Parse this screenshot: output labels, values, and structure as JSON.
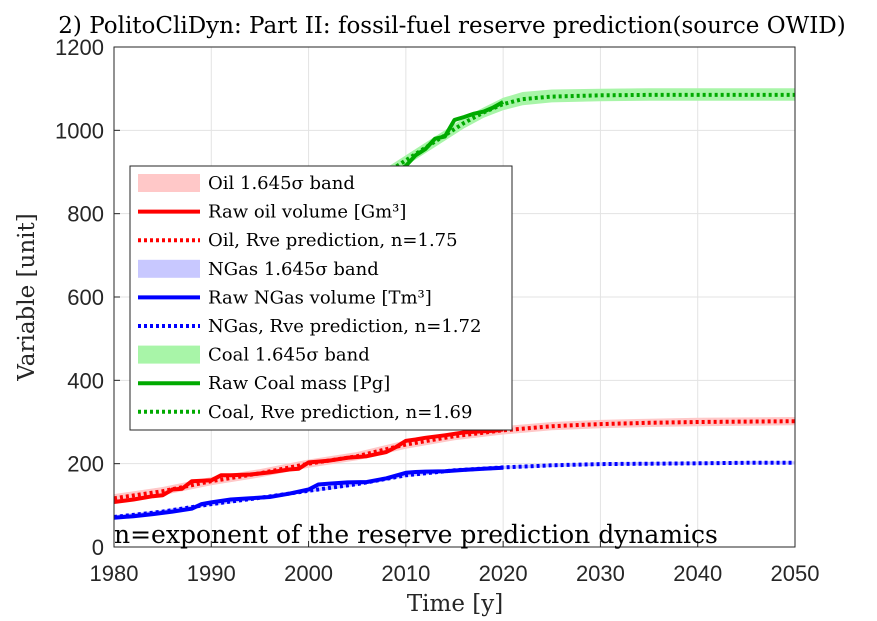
{
  "chart_data": {
    "type": "line",
    "title": "2) PolitoCliDyn: Part II: fossil-fuel reserve prediction(source OWID)",
    "xlabel": "Time [y]",
    "ylabel": "Variable [unit]",
    "xlim": [
      1980,
      2050
    ],
    "ylim": [
      0,
      1200
    ],
    "xticks": [
      1980,
      1990,
      2000,
      2010,
      2020,
      2030,
      2040,
      2050
    ],
    "yticks": [
      0,
      200,
      400,
      600,
      800,
      1000,
      1200
    ],
    "grid": true,
    "legend_position": "left",
    "annotation": "n=exponent of the reserve prediction dynamics",
    "series": [
      {
        "key": "oil_band",
        "name": "Oil 1.645σ band",
        "kind": "band",
        "color": "#ffc8c8",
        "x": [
          1980,
          1985,
          1990,
          1995,
          2000,
          2005,
          2010,
          2015,
          2020,
          2025,
          2030,
          2035,
          2040,
          2045,
          2050
        ],
        "lower": [
          107,
          124,
          148,
          167,
          190,
          208,
          236,
          256,
          270,
          280,
          285,
          288,
          290,
          291,
          292
        ],
        "upper": [
          127,
          144,
          168,
          187,
          210,
          228,
          256,
          276,
          290,
          300,
          305,
          308,
          310,
          311,
          312
        ]
      },
      {
        "key": "oil_raw",
        "name": "Raw oil volume [Gm³]",
        "kind": "solid",
        "color": "#ff0000",
        "x": [
          1980,
          1982,
          1984,
          1985,
          1986,
          1987,
          1988,
          1989,
          1990,
          1991,
          1992,
          1994,
          1996,
          1998,
          1999,
          2000,
          2001,
          2002,
          2004,
          2006,
          2008,
          2009,
          2010,
          2011,
          2012,
          2014,
          2016,
          2018,
          2019,
          2020
        ],
        "y": [
          108,
          114,
          122,
          124,
          138,
          140,
          158,
          159,
          160,
          172,
          172,
          174,
          179,
          186,
          188,
          203,
          205,
          207,
          214,
          218,
          228,
          240,
          255,
          258,
          262,
          268,
          275,
          278,
          279,
          282
        ]
      },
      {
        "key": "oil_pred",
        "name": "Oil, Rve prediction, n=1.75",
        "kind": "dotted",
        "color": "#ff0000",
        "x": [
          1980,
          1985,
          1990,
          1995,
          2000,
          2005,
          2010,
          2015,
          2020,
          2025,
          2030,
          2035,
          2040,
          2045,
          2050
        ],
        "y": [
          117,
          134,
          158,
          177,
          200,
          218,
          246,
          266,
          280,
          290,
          295,
          298,
          300,
          301,
          302
        ]
      },
      {
        "key": "gas_band",
        "name": "NGas 1.645σ band",
        "kind": "band",
        "color": "#c8c8ff",
        "x": [
          1980,
          1985,
          1990,
          1995,
          2000,
          2005,
          2010,
          2015,
          2020,
          2025,
          2030,
          2035,
          2040,
          2045,
          2050
        ],
        "lower": [
          68,
          81,
          99,
          114,
          131,
          147,
          168,
          180,
          187,
          192,
          195,
          196,
          197,
          198,
          198
        ],
        "upper": [
          76,
          89,
          107,
          122,
          139,
          155,
          176,
          188,
          195,
          200,
          203,
          204,
          205,
          206,
          206
        ]
      },
      {
        "key": "gas_raw",
        "name": "Raw NGas volume [Tm³]",
        "kind": "solid",
        "color": "#0000ff",
        "x": [
          1980,
          1982,
          1984,
          1986,
          1988,
          1989,
          1990,
          1992,
          1994,
          1996,
          1998,
          2000,
          2001,
          2002,
          2004,
          2006,
          2008,
          2010,
          2011,
          2012,
          2014,
          2016,
          2018,
          2019,
          2020
        ],
        "y": [
          70,
          74,
          79,
          85,
          92,
          103,
          107,
          114,
          117,
          120,
          128,
          138,
          150,
          152,
          155,
          156,
          165,
          178,
          180,
          181,
          182,
          185,
          188,
          189,
          190
        ]
      },
      {
        "key": "gas_pred",
        "name": "NGas, Rve prediction, n=1.72",
        "kind": "dotted",
        "color": "#0000ff",
        "x": [
          1980,
          1985,
          1990,
          1995,
          2000,
          2005,
          2010,
          2015,
          2020,
          2025,
          2030,
          2035,
          2040,
          2045,
          2050
        ],
        "y": [
          72,
          85,
          103,
          118,
          135,
          151,
          172,
          184,
          191,
          196,
          199,
          200,
          201,
          202,
          202
        ]
      },
      {
        "key": "coal_band",
        "name": "Coal 1.645σ band",
        "kind": "band",
        "color": "#a8f5a8",
        "x": [
          2008,
          2010,
          2012,
          2014,
          2016,
          2018,
          2020,
          2022,
          2025,
          2030,
          2035,
          2040,
          2045,
          2050
        ],
        "lower": [
          885,
          915,
          945,
          975,
          1005,
          1030,
          1048,
          1060,
          1067,
          1070,
          1071,
          1071,
          1071,
          1071
        ],
        "upper": [
          910,
          940,
          970,
          1000,
          1030,
          1055,
          1078,
          1092,
          1098,
          1100,
          1101,
          1101,
          1101,
          1101
        ]
      },
      {
        "key": "coal_raw",
        "name": "Raw Coal mass [Pg]",
        "kind": "solid",
        "color": "#00aa00",
        "x": [
          2008,
          2009,
          2010,
          2011,
          2012,
          2013,
          2014,
          2015,
          2016,
          2017,
          2018,
          2019,
          2020
        ],
        "y": [
          892,
          900,
          915,
          940,
          955,
          980,
          985,
          1025,
          1032,
          1040,
          1045,
          1055,
          1068
        ]
      },
      {
        "key": "coal_pred",
        "name": "Coal, Rve prediction, n=1.69",
        "kind": "dotted",
        "color": "#00aa00",
        "x": [
          2008,
          2010,
          2012,
          2014,
          2016,
          2018,
          2020,
          2022,
          2025,
          2030,
          2035,
          2040,
          2045,
          2050
        ],
        "y": [
          898,
          928,
          958,
          988,
          1018,
          1043,
          1063,
          1075,
          1081,
          1084,
          1085,
          1085,
          1085,
          1085
        ]
      }
    ]
  }
}
